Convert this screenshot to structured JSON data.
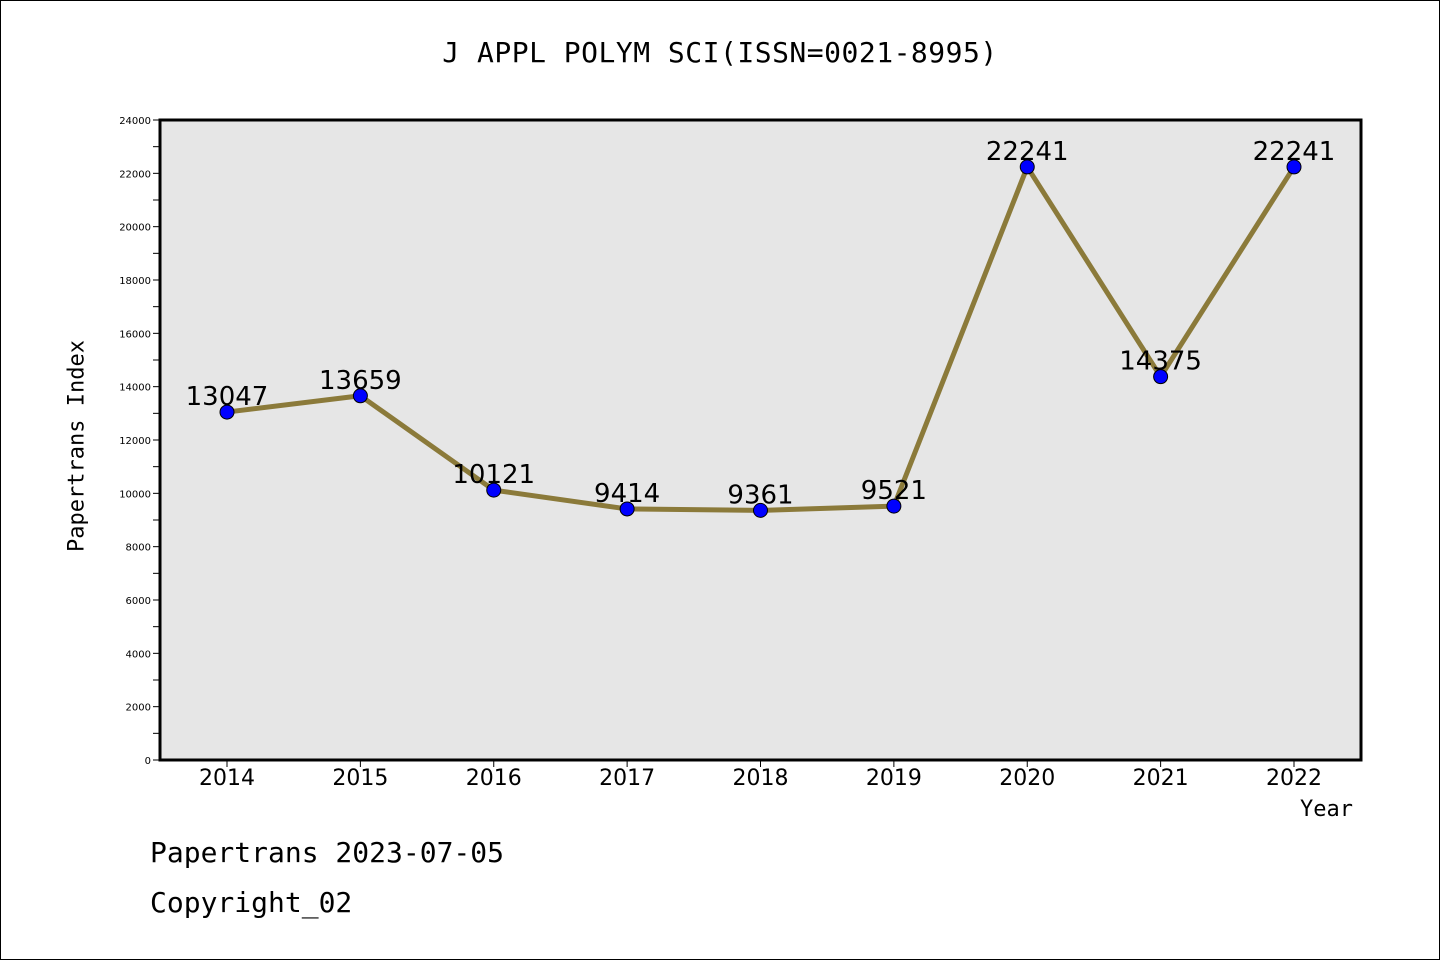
{
  "chart_data": {
    "type": "line",
    "title": "J APPL POLYM SCI(ISSN=0021-8995)",
    "xlabel": "Year",
    "ylabel": "Papertrans Index",
    "categories": [
      "2014",
      "2015",
      "2016",
      "2017",
      "2018",
      "2019",
      "2020",
      "2021",
      "2022"
    ],
    "values": [
      13047,
      13659,
      10121,
      9414,
      9361,
      9521,
      22241,
      14375,
      22241
    ],
    "y_ticks": [
      "0",
      "2000",
      "4000",
      "6000",
      "8000",
      "10000",
      "12000",
      "14000",
      "16000",
      "18000",
      "20000",
      "22000",
      "24000"
    ],
    "ylim": [
      0,
      24000
    ],
    "grid": false,
    "colors": {
      "line": "#8b7a3a",
      "marker": "#0000ff",
      "plot_background": "#e6e6e6"
    }
  },
  "footer": {
    "line1": "Papertrans 2023-07-05",
    "line2": "Copyright_02"
  }
}
